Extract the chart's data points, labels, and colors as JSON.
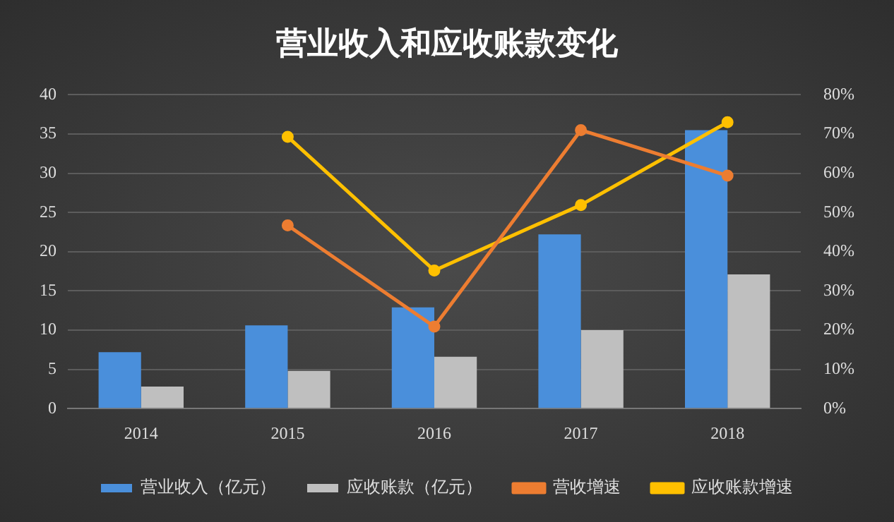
{
  "chart_data": {
    "type": "bar",
    "title": "营业收入和应收账款变化",
    "categories": [
      "2014",
      "2015",
      "2016",
      "2017",
      "2018"
    ],
    "series": [
      {
        "name": "营业收入（亿元）",
        "color": "#4a8fdb",
        "values": [
          7.2,
          10.6,
          12.9,
          22.2,
          35.5
        ]
      },
      {
        "name": "应收账款（亿元）",
        "color": "#bfbfbf",
        "values": [
          2.8,
          4.8,
          6.6,
          10.0,
          17.1
        ]
      },
      {
        "name": "营收增速",
        "type": "line",
        "axis": "y2",
        "color": "#ed7d31",
        "values": [
          null,
          46.7,
          20.9,
          71.0,
          59.4
        ]
      },
      {
        "name": "应收账款增速",
        "type": "line",
        "axis": "y2",
        "color": "#ffc000",
        "values": [
          null,
          69.3,
          35.2,
          51.9,
          73.0
        ]
      }
    ],
    "ylim": [
      0,
      40
    ],
    "yticks": [
      0,
      5,
      10,
      15,
      20,
      25,
      30,
      35,
      40
    ],
    "y2lim": [
      0,
      80
    ],
    "y2ticks": [
      {
        "value": 0,
        "label": "0%"
      },
      {
        "value": 10,
        "label": "10%"
      },
      {
        "value": 20,
        "label": "20%"
      },
      {
        "value": 30,
        "label": "30%"
      },
      {
        "value": 40,
        "label": "40%"
      },
      {
        "value": 50,
        "label": "50%"
      },
      {
        "value": 60,
        "label": "60%"
      },
      {
        "value": 70,
        "label": "70%"
      },
      {
        "value": 80,
        "label": "80%"
      }
    ],
    "grid": "y",
    "legend": "bottom",
    "marker": "circle"
  }
}
